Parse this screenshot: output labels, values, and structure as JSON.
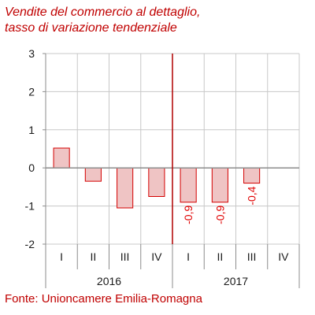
{
  "chart_data": {
    "type": "bar",
    "title_lines": [
      "Vendite del commercio al dettaglio,",
      "tasso di variazione tendenziale"
    ],
    "source": "Fonte: Unioncamere Emilia-Romagna",
    "categories": [
      "I",
      "II",
      "III",
      "IV",
      "I",
      "II",
      "III",
      "IV"
    ],
    "years": [
      {
        "label": "2016",
        "quarters": 4
      },
      {
        "label": "2017",
        "quarters": 4
      }
    ],
    "values": [
      0.52,
      -0.35,
      -1.05,
      -0.75,
      -0.9,
      -0.9,
      -0.4,
      null
    ],
    "data_labels": [
      "",
      "",
      "",
      "",
      "-0,9",
      "-0,9",
      "-0,4",
      ""
    ],
    "ylim": [
      -2,
      3
    ],
    "yticks": [
      -2,
      -1,
      0,
      1,
      2,
      3
    ],
    "ytick_labels": [
      "-2",
      "-1",
      "0",
      "1",
      "2",
      "3"
    ],
    "grid": true,
    "year_separator_after_category": 4,
    "colors": {
      "bar_fill": "#efc4c4",
      "bar_stroke": "#d40000",
      "separator": "#b00000",
      "grid": "#c8c8c8",
      "axis": "#8c8c8c",
      "label_text": "#e00000",
      "text": "#1a1a1a"
    }
  }
}
